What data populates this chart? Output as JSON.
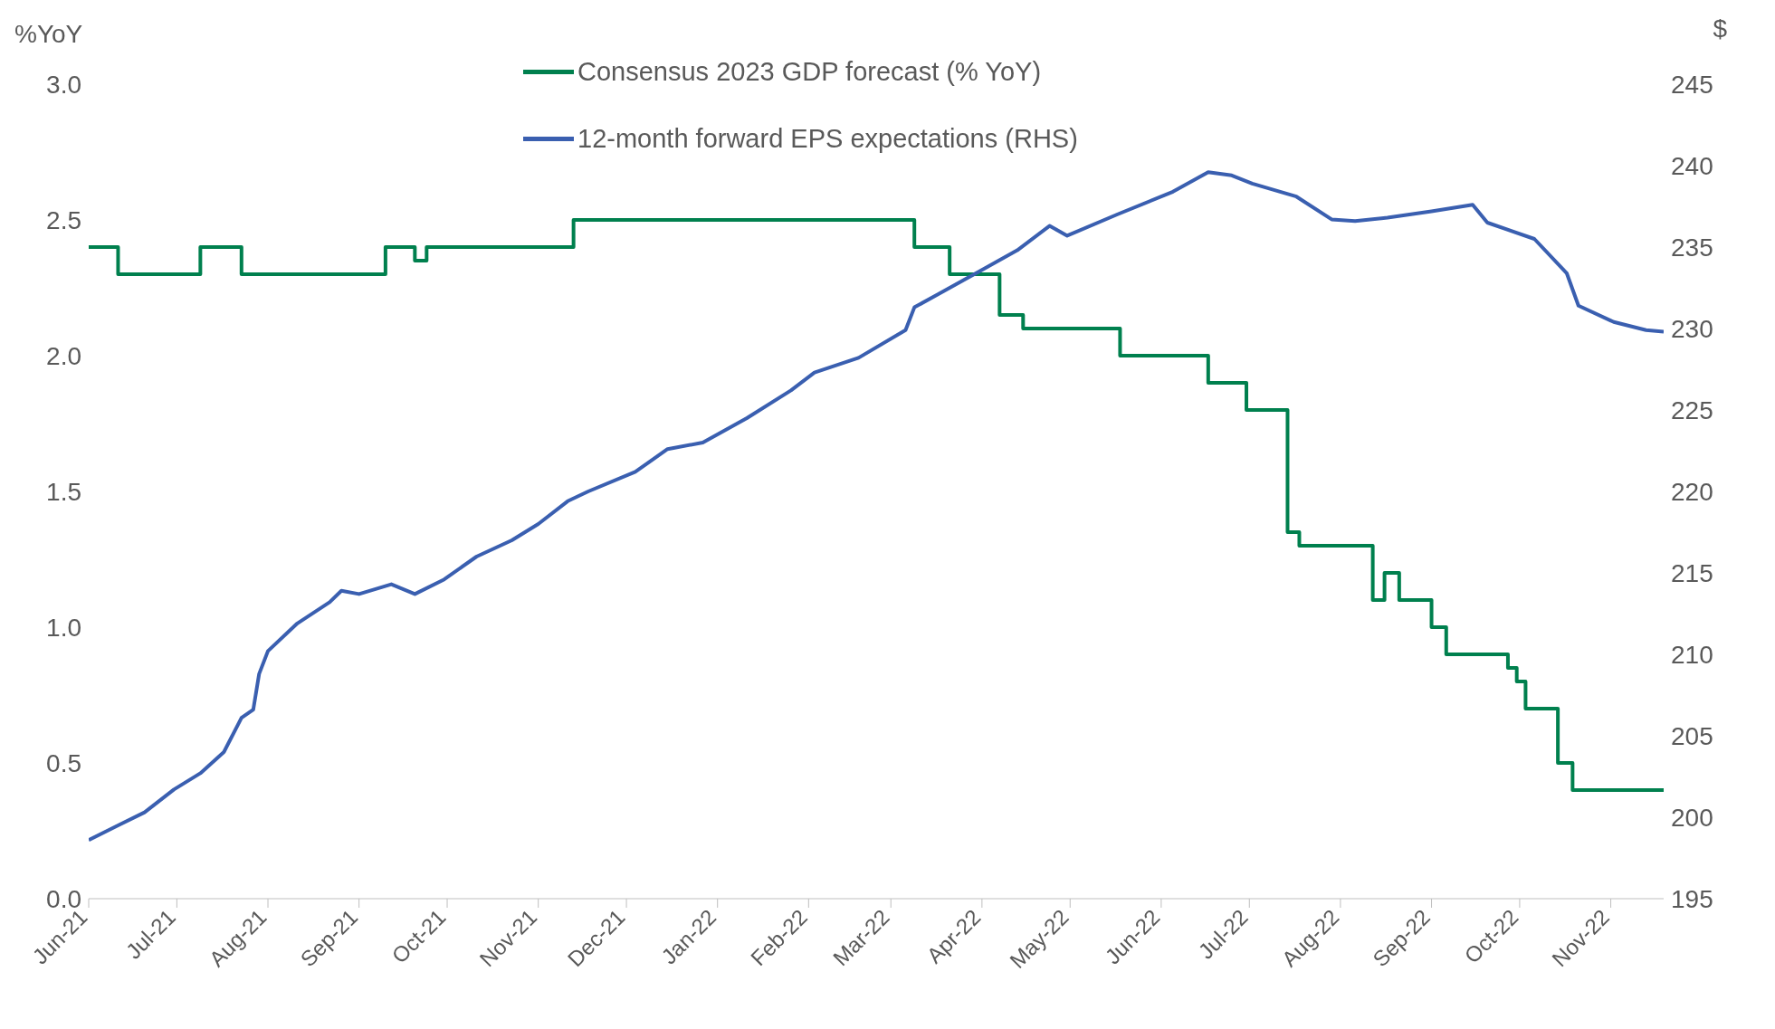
{
  "chart_data": {
    "type": "line",
    "ylabel": "%YoY",
    "y2label": "$",
    "legend": "top",
    "xlim": [
      "2021-06-01",
      "2022-11-19"
    ],
    "xticks": [
      {
        "value": "2021-06-01",
        "label": "Jun-21"
      },
      {
        "value": "2021-07-01",
        "label": "Jul-21"
      },
      {
        "value": "2021-08-01",
        "label": "Aug-21"
      },
      {
        "value": "2021-09-01",
        "label": "Sep-21"
      },
      {
        "value": "2021-10-01",
        "label": "Oct-21"
      },
      {
        "value": "2021-11-01",
        "label": "Nov-21"
      },
      {
        "value": "2021-12-01",
        "label": "Dec-21"
      },
      {
        "value": "2022-01-01",
        "label": "Jan-22"
      },
      {
        "value": "2022-02-01",
        "label": "Feb-22"
      },
      {
        "value": "2022-03-01",
        "label": "Mar-22"
      },
      {
        "value": "2022-04-01",
        "label": "Apr-22"
      },
      {
        "value": "2022-05-01",
        "label": "May-22"
      },
      {
        "value": "2022-06-01",
        "label": "Jun-22"
      },
      {
        "value": "2022-07-01",
        "label": "Jul-22"
      },
      {
        "value": "2022-08-01",
        "label": "Aug-22"
      },
      {
        "value": "2022-09-01",
        "label": "Sep-22"
      },
      {
        "value": "2022-10-01",
        "label": "Oct-22"
      },
      {
        "value": "2022-11-01",
        "label": "Nov-22"
      }
    ],
    "ylim": [
      0,
      3
    ],
    "yticks": [
      {
        "value": 0,
        "label": "0.0"
      },
      {
        "value": 0.5,
        "label": "0.5"
      },
      {
        "value": 1,
        "label": "1.0"
      },
      {
        "value": 1.5,
        "label": "1.5"
      },
      {
        "value": 2,
        "label": "2.0"
      },
      {
        "value": 2.5,
        "label": "2.5"
      },
      {
        "value": 3,
        "label": "3.0"
      }
    ],
    "y2lim": [
      195,
      245
    ],
    "y2ticks": [
      195,
      200,
      205,
      210,
      215,
      220,
      225,
      230,
      235,
      240,
      245
    ],
    "series": [
      {
        "name": "Consensus 2023 GDP forecast (% YoY)",
        "type": "step",
        "color": "#00804e",
        "x": [
          "2021-06-01",
          "2021-06-11",
          "2021-07-09",
          "2021-07-23",
          "2021-09-10",
          "2021-09-20",
          "2021-09-24",
          "2021-11-13",
          "2022-03-09",
          "2022-03-21",
          "2022-04-07",
          "2022-04-15",
          "2022-05-18",
          "2022-06-17",
          "2022-06-30",
          "2022-07-14",
          "2022-07-18",
          "2022-08-12",
          "2022-08-16",
          "2022-08-21",
          "2022-09-01",
          "2022-09-06",
          "2022-09-27",
          "2022-09-30",
          "2022-10-03",
          "2022-10-14",
          "2022-10-19",
          "2022-11-19"
        ],
        "values": [
          2.4,
          2.3,
          2.4,
          2.3,
          2.4,
          2.35,
          2.4,
          2.5,
          2.4,
          2.3,
          2.15,
          2.1,
          2.0,
          1.9,
          1.8,
          1.35,
          1.3,
          1.1,
          1.2,
          1.1,
          1.0,
          0.9,
          0.85,
          0.8,
          0.7,
          0.5,
          0.4,
          0.4
        ]
      },
      {
        "name": "12-month forward EPS expectations (RHS)",
        "type": "line",
        "axis": "y2",
        "color": "#3a5fb0",
        "x": [
          "2021-06-01",
          "2021-06-11",
          "2021-06-20",
          "2021-06-30",
          "2021-07-09",
          "2021-07-17",
          "2021-07-23",
          "2021-07-27",
          "2021-07-29",
          "2021-08-01",
          "2021-08-11",
          "2021-08-22",
          "2021-08-26",
          "2021-09-01",
          "2021-09-12",
          "2021-09-20",
          "2021-09-30",
          "2021-10-11",
          "2021-10-23",
          "2021-11-01",
          "2021-11-11",
          "2021-11-18",
          "2021-12-04",
          "2021-12-15",
          "2021-12-27",
          "2022-01-11",
          "2022-01-26",
          "2022-02-03",
          "2022-02-18",
          "2022-03-06",
          "2022-03-09",
          "2022-03-17",
          "2022-04-01",
          "2022-04-13",
          "2022-04-24",
          "2022-04-30",
          "2022-05-17",
          "2022-06-05",
          "2022-06-17",
          "2022-06-25",
          "2022-07-02",
          "2022-07-17",
          "2022-07-29",
          "2022-08-06",
          "2022-08-17",
          "2022-09-01",
          "2022-09-15",
          "2022-09-20",
          "2022-10-06",
          "2022-10-17",
          "2022-10-21",
          "2022-11-02",
          "2022-11-13",
          "2022-11-19"
        ],
        "values": [
          198.6,
          199.5,
          200.3,
          201.7,
          202.7,
          204.0,
          206.1,
          206.6,
          208.8,
          210.2,
          211.9,
          213.2,
          213.9,
          213.7,
          214.3,
          213.7,
          214.6,
          216.0,
          217.0,
          218.0,
          219.4,
          220.0,
          221.2,
          222.6,
          223.0,
          224.5,
          226.2,
          227.3,
          228.2,
          229.9,
          231.3,
          232.1,
          233.6,
          234.8,
          236.3,
          235.7,
          237.0,
          238.4,
          239.6,
          239.4,
          238.9,
          238.1,
          236.7,
          236.6,
          236.8,
          237.2,
          237.6,
          236.5,
          235.5,
          233.4,
          231.4,
          230.4,
          229.9,
          229.8
        ]
      }
    ]
  }
}
